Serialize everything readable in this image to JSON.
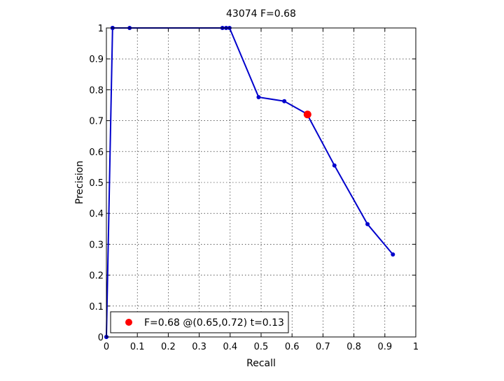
{
  "chart_data": {
    "type": "line",
    "title": "43074 F=0.68",
    "xlabel": "Recall",
    "ylabel": "Precision",
    "xlim": [
      0,
      1
    ],
    "ylim": [
      0,
      1
    ],
    "grid": true,
    "xticks": [
      "0",
      "0.1",
      "0.2",
      "0.3",
      "0.4",
      "0.5",
      "0.6",
      "0.7",
      "0.8",
      "0.9",
      "1"
    ],
    "yticks": [
      "0",
      "0.1",
      "0.2",
      "0.3",
      "0.4",
      "0.5",
      "0.6",
      "0.7",
      "0.8",
      "0.9",
      "1"
    ],
    "series": [
      {
        "color": "#0000cc",
        "x": [
          0.0,
          0.0,
          0.02,
          0.02,
          0.075,
          0.375,
          0.387,
          0.398,
          0.492,
          0.575,
          0.648,
          0.737,
          0.844,
          0.926
        ],
        "y": [
          0.0,
          0.0,
          1.0,
          1.0,
          1.0,
          1.0,
          1.0,
          1.0,
          0.776,
          0.763,
          0.722,
          0.555,
          0.365,
          0.267
        ]
      }
    ],
    "highlight": {
      "x": 0.65,
      "y": 0.72,
      "color": "#ff0000"
    },
    "legend": {
      "position": "bottom-left",
      "entries": [
        {
          "label": "F=0.68 @(0.65,0.72) t=0.13",
          "color": "#ff0000",
          "marker": "circle"
        }
      ]
    }
  }
}
